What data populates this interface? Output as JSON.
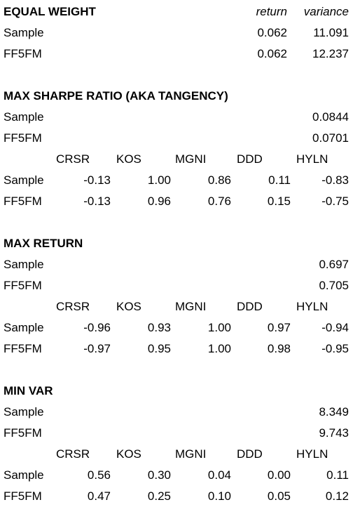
{
  "equal_weight": {
    "title": "EQUAL WEIGHT",
    "col_return": "return",
    "col_variance": "variance",
    "rows": [
      {
        "label": "Sample",
        "return": "0.062",
        "variance": "11.091"
      },
      {
        "label": "FF5FM",
        "return": "0.062",
        "variance": "12.237"
      }
    ]
  },
  "max_sharpe": {
    "title": "MAX SHARPE RATIO (AKA TANGENCY)",
    "summary": [
      {
        "label": "Sample",
        "value": "0.0844"
      },
      {
        "label": "FF5FM",
        "value": "0.0701"
      }
    ],
    "headers": [
      "CRSR",
      "KOS",
      "MGNI",
      "DDD",
      "HYLN"
    ],
    "weights": [
      {
        "label": "Sample",
        "values": [
          "-0.13",
          "1.00",
          "0.86",
          "0.11",
          "-0.83"
        ]
      },
      {
        "label": "FF5FM",
        "values": [
          "-0.13",
          "0.96",
          "0.76",
          "0.15",
          "-0.75"
        ]
      }
    ]
  },
  "max_return": {
    "title": "MAX RETURN",
    "summary": [
      {
        "label": "Sample",
        "value": "0.697"
      },
      {
        "label": "FF5FM",
        "value": "0.705"
      }
    ],
    "headers": [
      "CRSR",
      "KOS",
      "MGNI",
      "DDD",
      "HYLN"
    ],
    "weights": [
      {
        "label": "Sample",
        "values": [
          "-0.96",
          "0.93",
          "1.00",
          "0.97",
          "-0.94"
        ]
      },
      {
        "label": "FF5FM",
        "values": [
          "-0.97",
          "0.95",
          "1.00",
          "0.98",
          "-0.95"
        ]
      }
    ]
  },
  "min_var": {
    "title": "MIN VAR",
    "summary": [
      {
        "label": "Sample",
        "value": "8.349"
      },
      {
        "label": "FF5FM",
        "value": "9.743"
      }
    ],
    "headers": [
      "CRSR",
      "KOS",
      "MGNI",
      "DDD",
      "HYLN"
    ],
    "weights": [
      {
        "label": "Sample",
        "values": [
          "0.56",
          "0.30",
          "0.04",
          "0.00",
          "0.11"
        ]
      },
      {
        "label": "FF5FM",
        "values": [
          "0.47",
          "0.25",
          "0.10",
          "0.05",
          "0.12"
        ]
      }
    ]
  }
}
